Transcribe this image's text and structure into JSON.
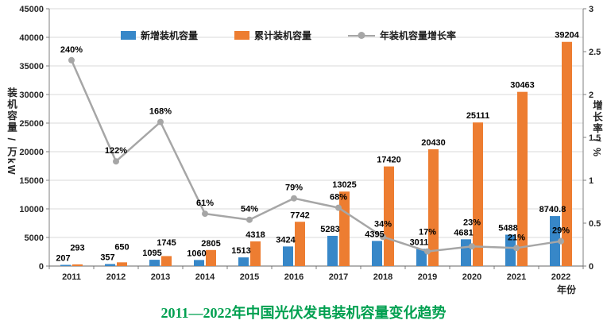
{
  "chart_data": {
    "type": "bar",
    "combo": "bar+line",
    "title": "2011—2022年中国光伏发电装机容量变化趋势",
    "title_color": "#00A050",
    "categories": [
      "2011",
      "2012",
      "2013",
      "2014",
      "2015",
      "2016",
      "2017",
      "2018",
      "2019",
      "2020",
      "2021",
      "2022"
    ],
    "series": [
      {
        "name": "新增装机容量",
        "type": "bar",
        "axis": "left",
        "color": "#3787C8",
        "values": [
          207,
          357,
          1095,
          1060,
          1513,
          3424,
          5283,
          4395,
          3011,
          4681,
          5488,
          8740.8
        ],
        "labels": [
          "207",
          "357",
          "1095",
          "1060",
          "1513",
          "3424",
          "5283",
          "4395",
          "3011",
          "4681",
          "5488",
          "8740.8"
        ]
      },
      {
        "name": "累计装机容量",
        "type": "bar",
        "axis": "left",
        "color": "#ED7D31",
        "values": [
          293,
          650,
          1745,
          2805,
          4318,
          7742,
          13025,
          17420,
          20430,
          25111,
          30463,
          39204
        ],
        "labels": [
          "293",
          "650",
          "1745",
          "2805",
          "4318",
          "7742",
          "13025",
          "17420",
          "20430",
          "25111",
          "30463",
          "39204"
        ]
      },
      {
        "name": "年装机容量增长率",
        "type": "line",
        "axis": "right",
        "color": "#A6A6A6",
        "values": [
          2.4,
          1.22,
          1.68,
          0.61,
          0.54,
          0.79,
          0.68,
          0.34,
          0.17,
          0.23,
          0.21,
          0.29
        ],
        "labels": [
          "240%",
          "122%",
          "168%",
          "61%",
          "54%",
          "79%",
          "68%",
          "34%",
          "17%",
          "23%",
          "21%",
          "29%"
        ]
      }
    ],
    "left_axis": {
      "label": "装机容量 / 万kW",
      "min": 0,
      "max": 45000,
      "step": 5000,
      "ticks": [
        "0",
        "5000",
        "10000",
        "15000",
        "20000",
        "25000",
        "30000",
        "35000",
        "40000",
        "45000"
      ]
    },
    "right_axis": {
      "label": "增长率 / %",
      "min": 0,
      "max": 3,
      "step": 0.5,
      "ticks": [
        "0",
        "0.5",
        "1",
        "1.5",
        "2",
        "2.5",
        "3"
      ]
    },
    "x_axis": {
      "label": "年份"
    },
    "grid": true,
    "legend_position": "top-center"
  }
}
